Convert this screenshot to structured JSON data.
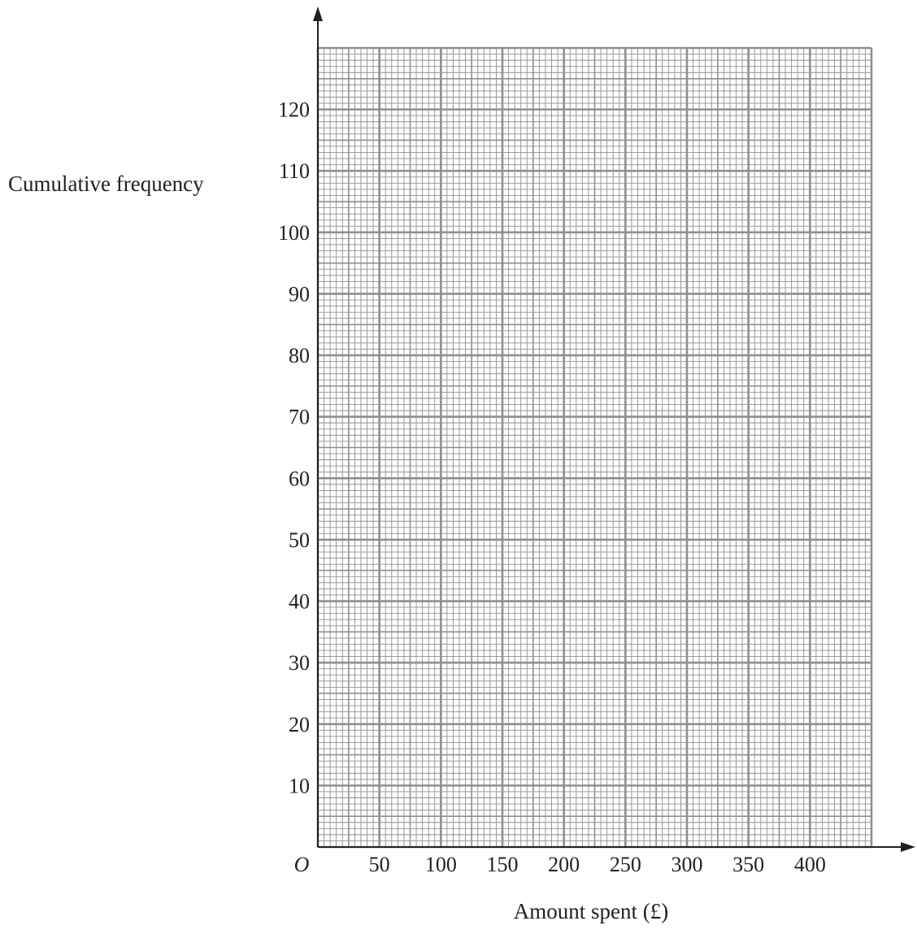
{
  "chart_data": {
    "type": "line",
    "title": "",
    "xlabel": "Amount spent (£)",
    "ylabel": "Cumulative frequency",
    "origin_label": "O",
    "xlim": [
      0,
      450
    ],
    "ylim": [
      0,
      130
    ],
    "x_ticks": [
      "50",
      "100",
      "150",
      "200",
      "250",
      "300",
      "350",
      "400"
    ],
    "y_ticks": [
      "10",
      "20",
      "30",
      "40",
      "50",
      "60",
      "70",
      "80",
      "90",
      "100",
      "110",
      "120"
    ],
    "grid": true,
    "series": []
  },
  "colors": {
    "grid": "#8f8f8f",
    "axis": "#231f20",
    "text": "#231f20"
  }
}
